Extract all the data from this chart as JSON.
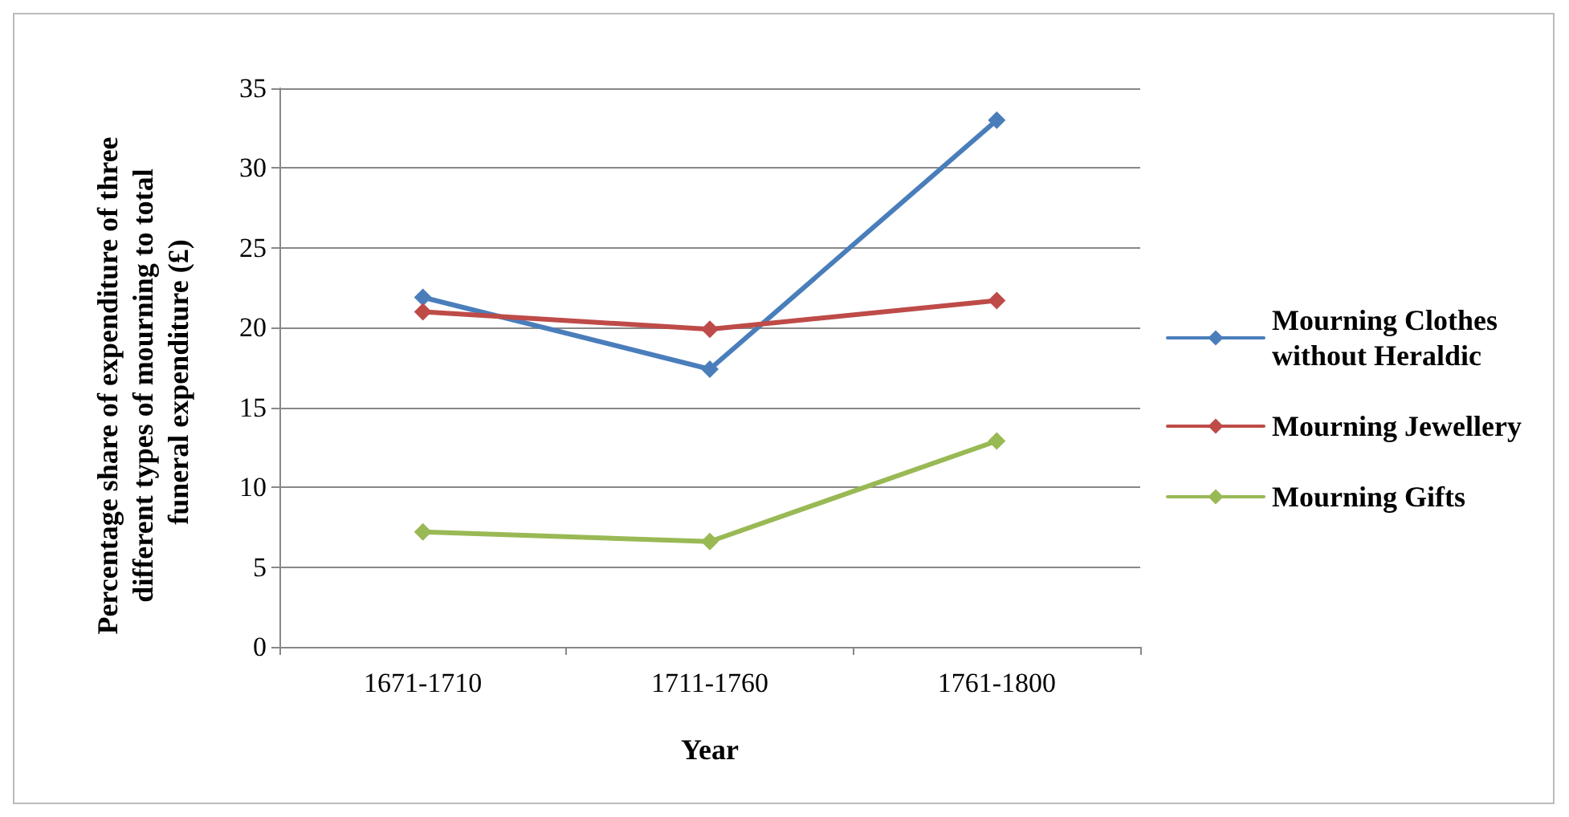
{
  "chart_data": {
    "type": "line",
    "xlabel": "Year",
    "ylabel": "Percentage share of expenditure of three different types of mourning to total funeral expenditure (£)",
    "categories": [
      "1671-1710",
      "1711-1760",
      "1761-1800"
    ],
    "series": [
      {
        "name": "Mourning Clothes without Heraldic",
        "color": "#4a7ebb",
        "values": [
          21.9,
          17.4,
          33.0
        ]
      },
      {
        "name": "Mourning Jewellery",
        "color": "#be4b48",
        "values": [
          21.0,
          19.9,
          21.7
        ]
      },
      {
        "name": "Mourning Gifts",
        "color": "#98b954",
        "values": [
          7.2,
          6.6,
          12.9
        ]
      }
    ],
    "ylim": [
      0,
      35
    ],
    "yticks": [
      0,
      5,
      10,
      15,
      20,
      25,
      30,
      35
    ],
    "grid": "y",
    "legend": "right",
    "marker": "diamond",
    "line_style": "solid"
  }
}
